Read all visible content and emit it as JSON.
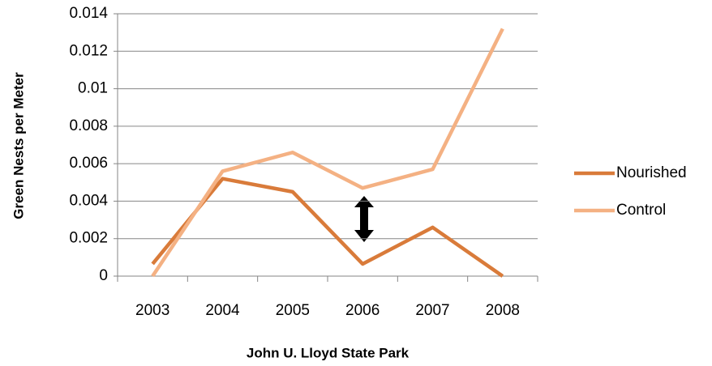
{
  "chart_data": {
    "type": "line",
    "x_label": "John U. Lloyd  State Park",
    "y_label": "Green Nests per Meter",
    "categories": [
      "2003",
      "2004",
      "2005",
      "2006",
      "2007",
      "2008"
    ],
    "series": [
      {
        "name": "Nourished",
        "color": "#d97b3a",
        "values": [
          0.00065,
          0.0052,
          0.0045,
          0.00065,
          0.0026,
          0
        ]
      },
      {
        "name": "Control",
        "color": "#f4b183",
        "values": [
          0,
          0.0056,
          0.0066,
          0.0047,
          0.0057,
          0.0132
        ]
      }
    ],
    "ylim": [
      0,
      0.014
    ],
    "yticks": [
      0,
      0.002,
      0.004,
      0.006,
      0.008,
      0.01,
      0.012,
      0.014
    ],
    "grid": true,
    "legend": "right"
  }
}
